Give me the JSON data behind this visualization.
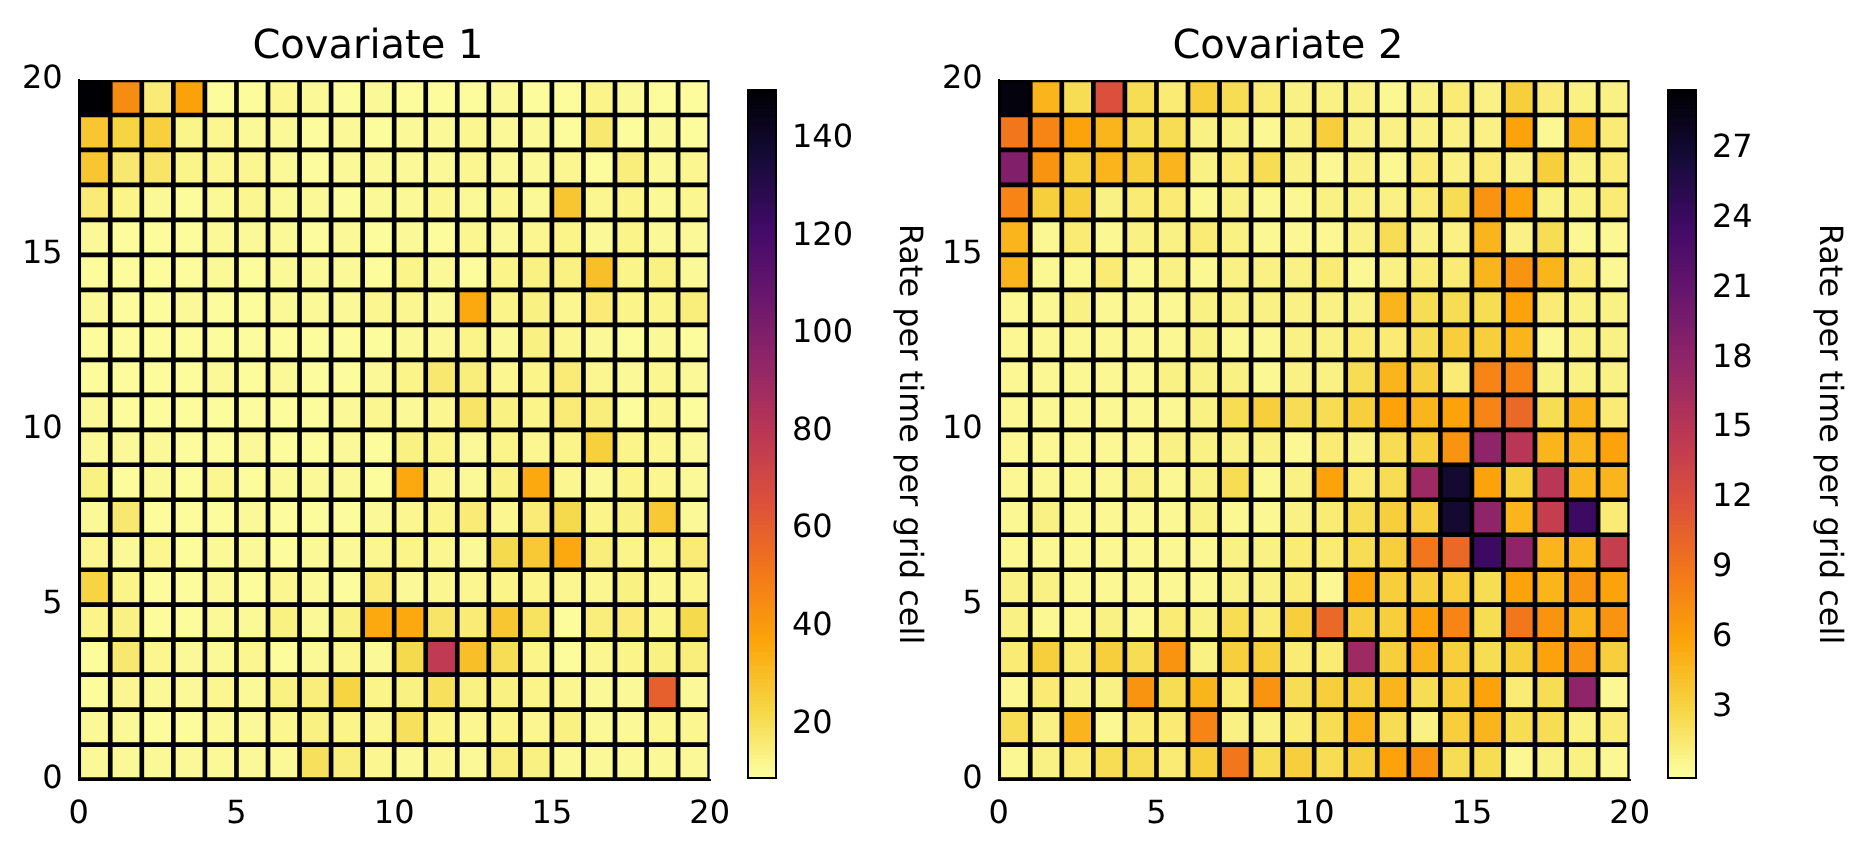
{
  "chart_data": [
    {
      "type": "heatmap",
      "title": "Covariate 1",
      "clabel": "Rate per time per grid cell",
      "xlim": [
        0,
        20
      ],
      "xticks": [
        0,
        5,
        10,
        15,
        20
      ],
      "ylim": [
        0,
        20
      ],
      "yticks": [
        0,
        5,
        10,
        15,
        20
      ],
      "clim": [
        9,
        150
      ],
      "cticks": [
        20,
        40,
        60,
        80,
        100,
        120,
        140
      ],
      "cells": [
        [
          150,
          45,
          16,
          38,
          10,
          10,
          12,
          11,
          10,
          11,
          10,
          10,
          10,
          11,
          10,
          10,
          13,
          11,
          10,
          10
        ],
        [
          28,
          24,
          25,
          13,
          12,
          11,
          11,
          10,
          11,
          10,
          11,
          11,
          12,
          11,
          11,
          10,
          17,
          10,
          11,
          10
        ],
        [
          28,
          17,
          18,
          13,
          12,
          12,
          11,
          10,
          11,
          11,
          11,
          11,
          12,
          11,
          11,
          12,
          10,
          15,
          11,
          12
        ],
        [
          16,
          13,
          11,
          10,
          11,
          12,
          11,
          11,
          10,
          11,
          11,
          12,
          11,
          12,
          11,
          28,
          12,
          13,
          11,
          12
        ],
        [
          11,
          10,
          10,
          10,
          11,
          11,
          11,
          10,
          11,
          10,
          11,
          10,
          12,
          11,
          12,
          13,
          11,
          13,
          11,
          11
        ],
        [
          10,
          10,
          10,
          10,
          11,
          10,
          11,
          11,
          11,
          10,
          13,
          11,
          10,
          13,
          14,
          14,
          30,
          13,
          14,
          11
        ],
        [
          11,
          10,
          10,
          11,
          10,
          10,
          11,
          11,
          11,
          12,
          12,
          11,
          36,
          13,
          14,
          12,
          16,
          13,
          13,
          15
        ],
        [
          10,
          10,
          10,
          10,
          10,
          10,
          10,
          10,
          10,
          10,
          11,
          11,
          13,
          11,
          14,
          12,
          11,
          10,
          11,
          10
        ],
        [
          10,
          10,
          10,
          10,
          11,
          10,
          11,
          10,
          10,
          11,
          13,
          17,
          15,
          12,
          13,
          16,
          12,
          11,
          12,
          11
        ],
        [
          11,
          10,
          10,
          10,
          10,
          10,
          10,
          10,
          11,
          12,
          11,
          12,
          18,
          14,
          13,
          16,
          15,
          10,
          12,
          10
        ],
        [
          11,
          11,
          11,
          10,
          10,
          11,
          10,
          10,
          11,
          10,
          14,
          13,
          11,
          13,
          12,
          13,
          25,
          13,
          12,
          11
        ],
        [
          14,
          10,
          11,
          10,
          12,
          10,
          11,
          11,
          11,
          10,
          36,
          12,
          11,
          14,
          36,
          12,
          11,
          13,
          12,
          11
        ],
        [
          11,
          17,
          10,
          10,
          10,
          11,
          10,
          10,
          10,
          11,
          12,
          13,
          16,
          12,
          16,
          22,
          13,
          14,
          27,
          11
        ],
        [
          12,
          11,
          12,
          10,
          11,
          11,
          10,
          11,
          11,
          12,
          13,
          12,
          11,
          22,
          27,
          36,
          15,
          13,
          13,
          16
        ],
        [
          24,
          13,
          10,
          10,
          11,
          10,
          12,
          11,
          10,
          16,
          11,
          12,
          12,
          13,
          13,
          12,
          12,
          14,
          12,
          13
        ],
        [
          13,
          14,
          10,
          10,
          11,
          11,
          14,
          11,
          14,
          36,
          36,
          18,
          16,
          28,
          19,
          10,
          15,
          16,
          13,
          22
        ],
        [
          10,
          17,
          12,
          11,
          11,
          12,
          10,
          11,
          12,
          11,
          22,
          78,
          30,
          21,
          13,
          10,
          12,
          13,
          14,
          15
        ],
        [
          10,
          12,
          11,
          11,
          12,
          11,
          14,
          15,
          24,
          13,
          14,
          20,
          14,
          14,
          13,
          12,
          11,
          11,
          60,
          11
        ],
        [
          11,
          11,
          10,
          10,
          11,
          11,
          12,
          14,
          13,
          12,
          20,
          13,
          12,
          13,
          12,
          14,
          11,
          11,
          12,
          12
        ],
        [
          11,
          11,
          11,
          11,
          11,
          11,
          11,
          20,
          15,
          12,
          11,
          12,
          11,
          15,
          14,
          11,
          11,
          11,
          11,
          11
        ]
      ]
    },
    {
      "type": "heatmap",
      "title": "Covariate 2",
      "clabel": "Rate per time per grid cell",
      "xlim": [
        0,
        20
      ],
      "xticks": [
        0,
        5,
        10,
        15,
        20
      ],
      "ylim": [
        0,
        20
      ],
      "yticks": [
        0,
        5,
        10,
        15,
        20
      ],
      "clim": [
        0,
        29.5
      ],
      "cticks": [
        3,
        6,
        9,
        12,
        15,
        18,
        21,
        24,
        27
      ],
      "cells": [
        [
          29,
          5,
          2.5,
          12,
          2.5,
          1.5,
          3.5,
          2.5,
          1.5,
          1,
          1,
          1,
          0.5,
          1,
          1.5,
          1,
          3.5,
          1.5,
          1,
          1
        ],
        [
          9,
          8,
          6,
          5,
          2.5,
          2.5,
          1,
          1,
          0.5,
          1,
          3.5,
          1,
          1,
          1,
          1,
          1,
          6,
          0.5,
          5,
          1.5
        ],
        [
          19,
          7,
          3.5,
          5,
          3.5,
          5,
          1,
          1.5,
          2.5,
          1,
          0.5,
          1,
          0.5,
          1.5,
          1,
          1.5,
          1,
          3.5,
          1,
          1.5
        ],
        [
          8,
          3.5,
          3.5,
          1,
          1.5,
          1.5,
          0.5,
          1,
          0.5,
          0.5,
          1,
          1,
          1,
          1.5,
          2.5,
          7,
          6,
          1,
          1,
          1.5
        ],
        [
          5,
          0.5,
          1.5,
          0.5,
          1,
          1,
          1.5,
          1,
          0.5,
          0.5,
          0.5,
          1,
          2.5,
          1,
          1,
          5,
          1,
          2.5,
          0.5,
          0.5
        ],
        [
          5,
          0.5,
          0.5,
          1.5,
          0.5,
          1,
          0.5,
          1,
          1,
          1,
          1.5,
          0.5,
          1,
          1.5,
          1.5,
          5,
          7,
          5,
          1.5,
          0.5
        ],
        [
          0.5,
          0.5,
          1,
          0.5,
          0.5,
          0.5,
          1,
          1,
          1,
          1,
          1,
          1,
          5,
          2.5,
          2.5,
          2.5,
          6,
          1.5,
          1,
          1
        ],
        [
          0.5,
          0.5,
          0.5,
          0.5,
          0.5,
          0.5,
          1,
          0.5,
          0.5,
          1,
          1,
          1.5,
          1.5,
          2.5,
          3.5,
          3.5,
          5,
          0.5,
          1,
          1
        ],
        [
          0.5,
          0.5,
          0.5,
          0.5,
          0.5,
          1,
          1,
          1,
          0.5,
          1,
          1,
          2.5,
          5,
          3.5,
          1.5,
          8,
          8,
          1,
          1,
          1
        ],
        [
          0.5,
          0.5,
          0.5,
          0.5,
          0.5,
          0.5,
          1,
          2.5,
          3.5,
          2.5,
          2.5,
          3.5,
          6,
          5,
          6,
          8,
          10,
          2.5,
          5,
          1.5
        ],
        [
          0.5,
          0.5,
          0.5,
          0.5,
          0.5,
          1,
          1,
          1,
          1,
          0.5,
          1.5,
          1,
          2.5,
          3.5,
          7,
          18,
          15,
          5,
          5,
          6
        ],
        [
          0.5,
          0.5,
          0.5,
          0.5,
          1,
          0.5,
          1,
          2.5,
          0.5,
          1,
          6,
          1.5,
          2.5,
          17,
          27,
          6,
          3.5,
          15,
          5,
          5
        ],
        [
          0.5,
          1,
          0.5,
          0.5,
          0.5,
          0.5,
          1,
          0.5,
          0.5,
          1,
          1.5,
          2.5,
          3.5,
          3.5,
          27,
          18,
          5,
          14,
          24,
          1.5
        ],
        [
          0.5,
          0.5,
          0.5,
          0.5,
          0.5,
          0.5,
          0.5,
          1,
          1,
          1.5,
          1.5,
          2.5,
          3.5,
          9,
          10,
          24,
          18,
          5,
          5,
          14
        ],
        [
          1,
          1,
          0.5,
          0.5,
          0.5,
          0.5,
          0.5,
          1,
          1,
          1.5,
          0.5,
          6,
          3.5,
          3.5,
          3.5,
          2.5,
          6,
          5,
          7,
          6
        ],
        [
          1,
          0.5,
          0.5,
          1,
          0.5,
          1.5,
          1,
          2.5,
          1.5,
          3.5,
          10,
          3.5,
          3.5,
          6,
          8,
          2.5,
          9,
          7,
          5,
          7
        ],
        [
          1.5,
          3.5,
          1.5,
          3.5,
          2.5,
          7,
          1,
          3.5,
          3.5,
          1.5,
          1.5,
          17,
          3.5,
          5,
          3.5,
          2.5,
          3.5,
          6,
          7,
          3.5
        ],
        [
          0.5,
          1.5,
          1,
          1,
          7,
          2.5,
          5,
          1.5,
          7,
          2.5,
          3.5,
          3.5,
          5,
          2.5,
          3.5,
          6,
          1.5,
          2.5,
          18,
          0.5
        ],
        [
          2.5,
          1,
          5,
          0.5,
          1.5,
          1.5,
          8,
          1,
          1,
          1.5,
          2.5,
          5,
          2.5,
          1,
          3.5,
          5,
          2.5,
          2.5,
          1,
          1.5
        ],
        [
          0.5,
          1,
          1.5,
          2.5,
          2.5,
          1.5,
          3.5,
          9,
          2.5,
          3.5,
          2.5,
          3.5,
          6,
          7,
          2.5,
          2.5,
          0.5,
          1,
          1,
          0.5
        ]
      ]
    }
  ]
}
